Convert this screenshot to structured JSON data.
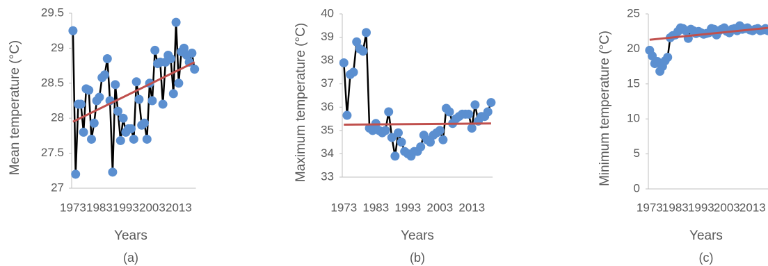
{
  "chart_data": [
    {
      "type": "line",
      "caption": "(a)",
      "x_label": "Years",
      "y_label": "Mean temperature (°C)",
      "categories": [
        "1973",
        null,
        null,
        null,
        null,
        null,
        null,
        null,
        null,
        null,
        "1983",
        null,
        null,
        null,
        null,
        null,
        null,
        null,
        null,
        null,
        "1993",
        null,
        null,
        null,
        null,
        null,
        null,
        null,
        null,
        null,
        "2003",
        null,
        null,
        null,
        null,
        null,
        null,
        null,
        null,
        null,
        "2013",
        null,
        null,
        null,
        null,
        null,
        null
      ],
      "values": [
        29.25,
        27.2,
        28.2,
        28.2,
        27.8,
        28.42,
        28.4,
        27.7,
        27.93,
        28.25,
        28.3,
        28.58,
        28.62,
        28.85,
        28.25,
        27.23,
        28.48,
        28.1,
        27.68,
        28.0,
        27.8,
        27.85,
        27.85,
        27.7,
        28.52,
        28.27,
        27.9,
        27.93,
        27.7,
        28.5,
        28.25,
        28.97,
        28.78,
        28.8,
        28.2,
        28.8,
        28.9,
        28.85,
        28.35,
        29.37,
        28.5,
        28.95,
        29.0,
        28.9,
        28.8,
        28.93,
        28.7
      ],
      "color": "#000000",
      "marker_color": "#5b8fd0",
      "trendline": {
        "color": "#c0504d",
        "values": [
          27.95,
          28.8
        ]
      },
      "ylim": [
        27,
        29.5
      ],
      "yticks": [
        27,
        27.5,
        28,
        28.5,
        29,
        29.5
      ]
    },
    {
      "type": "line",
      "caption": "(b)",
      "x_label": "Years",
      "y_label": "Maximum temperature (°C)",
      "categories": [
        "1973",
        null,
        null,
        null,
        null,
        null,
        null,
        null,
        null,
        null,
        "1983",
        null,
        null,
        null,
        null,
        null,
        null,
        null,
        null,
        null,
        "1993",
        null,
        null,
        null,
        null,
        null,
        null,
        null,
        null,
        null,
        "2003",
        null,
        null,
        null,
        null,
        null,
        null,
        null,
        null,
        null,
        "2013",
        null,
        null,
        null,
        null,
        null,
        null
      ],
      "values": [
        37.9,
        35.65,
        37.4,
        37.5,
        38.8,
        38.5,
        38.4,
        39.2,
        35.1,
        35.0,
        35.3,
        35.0,
        34.9,
        35.0,
        35.8,
        34.7,
        33.9,
        34.9,
        34.5,
        34.1,
        34.0,
        33.9,
        34.1,
        34.1,
        34.3,
        34.8,
        34.6,
        34.5,
        34.8,
        34.9,
        35.0,
        34.6,
        35.95,
        35.8,
        35.3,
        35.5,
        35.6,
        35.7,
        35.7,
        35.7,
        35.1,
        36.1,
        35.4,
        35.6,
        35.6,
        35.8,
        36.2
      ],
      "color": "#000000",
      "marker_color": "#5b8fd0",
      "trendline": {
        "color": "#c0504d",
        "values": [
          35.25,
          35.3
        ]
      },
      "ylim": [
        33,
        40
      ],
      "yticks": [
        33,
        34,
        35,
        36,
        37,
        38,
        39,
        40
      ]
    },
    {
      "type": "line",
      "caption": "(c)",
      "x_label": "Years",
      "y_label": "Minimum temperature (°C)",
      "categories": [
        "1973",
        null,
        null,
        null,
        null,
        null,
        null,
        null,
        null,
        null,
        "1983",
        null,
        null,
        null,
        null,
        null,
        null,
        null,
        null,
        null,
        "1993",
        null,
        null,
        null,
        null,
        null,
        null,
        null,
        null,
        null,
        "2003",
        null,
        null,
        null,
        null,
        null,
        null,
        null,
        null,
        null,
        "2013",
        null,
        null,
        null,
        null,
        null,
        null
      ],
      "values": [
        19.8,
        19.0,
        17.9,
        18.2,
        16.8,
        17.5,
        18.3,
        18.8,
        21.6,
        21.9,
        22.0,
        22.5,
        23.0,
        22.9,
        22.6,
        21.5,
        22.8,
        22.6,
        22.2,
        22.5,
        22.3,
        22.1,
        22.2,
        22.3,
        22.9,
        22.8,
        22.0,
        22.6,
        22.8,
        23.0,
        22.5,
        22.3,
        22.8,
        22.9,
        22.6,
        23.3,
        22.8,
        22.9,
        23.0,
        22.7,
        22.6,
        22.8,
        22.9,
        22.6,
        22.7,
        22.9,
        22.6
      ],
      "color": "#000000",
      "marker_color": "#5b8fd0",
      "trendline": {
        "color": "#c0504d",
        "values": [
          21.3,
          23.0
        ]
      },
      "ylim": [
        0,
        25
      ],
      "yticks": [
        0,
        5,
        10,
        15,
        20,
        25
      ]
    }
  ]
}
